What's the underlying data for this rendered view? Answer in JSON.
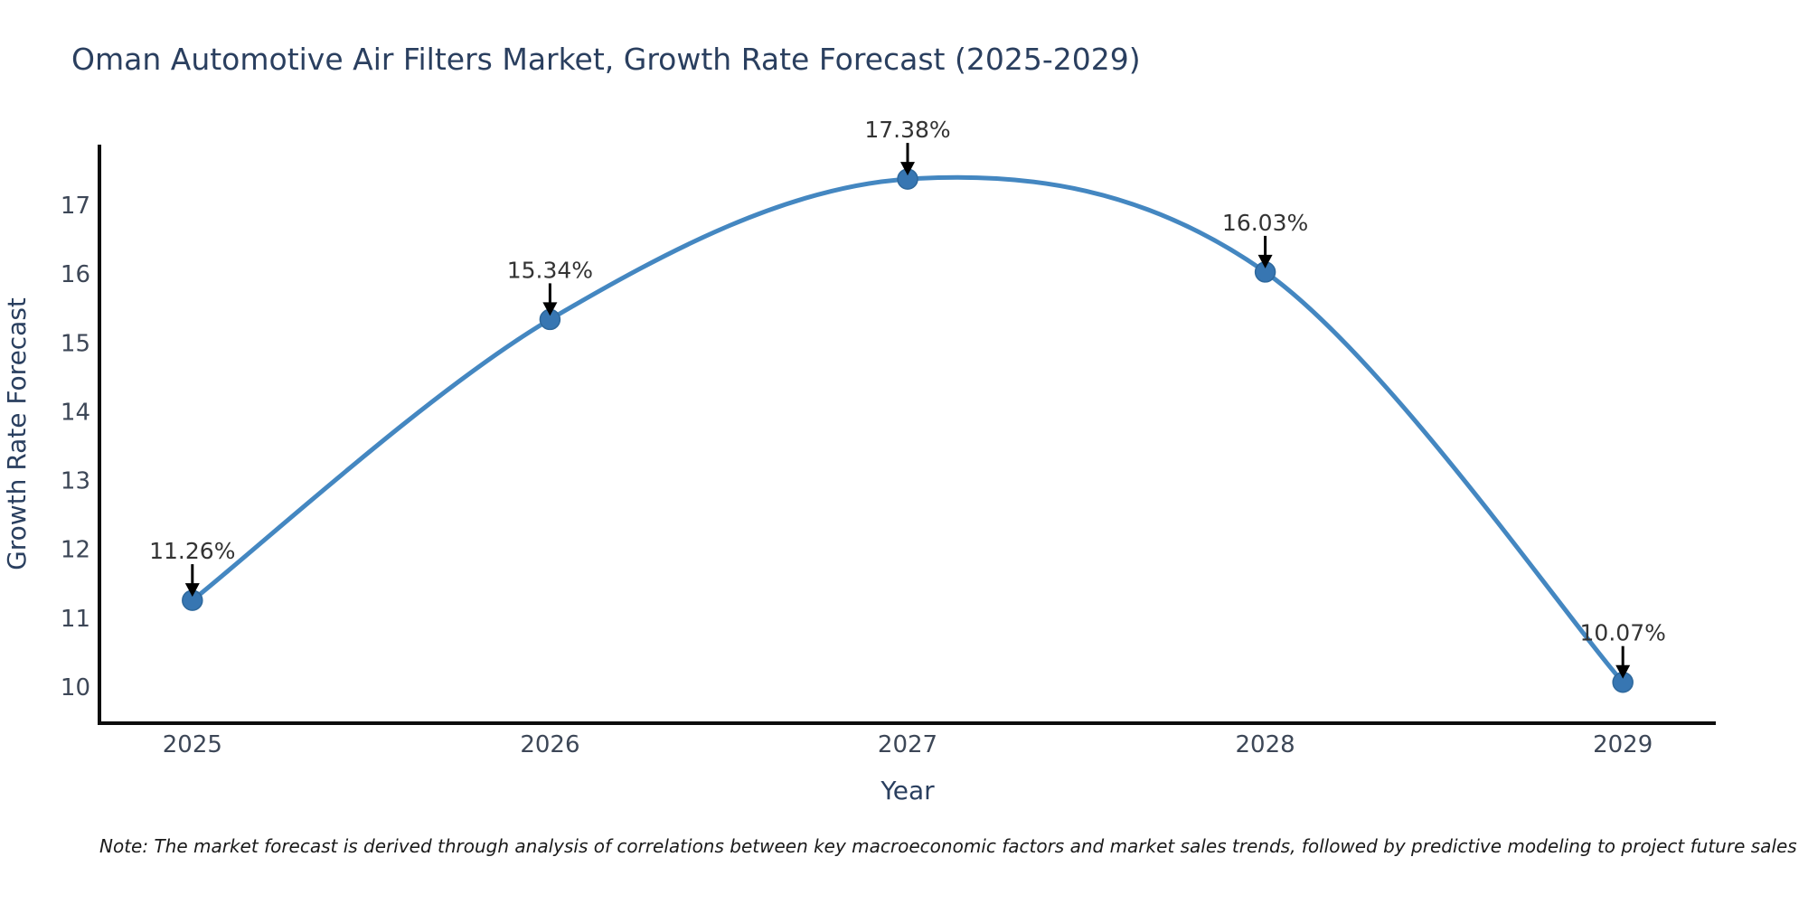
{
  "title": "Oman Automotive Air Filters Market, Growth Rate Forecast (2025-2029)",
  "note": "Note: The market forecast is derived through analysis of correlations between key macroeconomic factors and market sales trends, followed by predictive modeling to project future sales",
  "colors": {
    "line": "#4487c1",
    "marker_fill": "#3776b2",
    "marker_edge": "#2e689c",
    "axis_line": "#0d0d0d",
    "title_text": "#2a3f5f",
    "axis_label_text": "#2a3f5f",
    "tick_text": "#3d4757",
    "annotation_text": "#333333",
    "arrow": "#000000",
    "note_text": "#1a1a1a",
    "background": "#ffffff"
  },
  "chart_data": {
    "type": "line",
    "title": "Oman Automotive Air Filters Market, Growth Rate Forecast (2025-2029)",
    "xlabel": "Year",
    "ylabel": "Growth Rate Forecast",
    "x": [
      2025,
      2026,
      2027,
      2028,
      2029
    ],
    "series": [
      {
        "name": "Growth Rate Forecast",
        "values": [
          11.26,
          15.34,
          17.38,
          16.03,
          10.07
        ],
        "point_labels": [
          "11.26%",
          "15.34%",
          "17.38%",
          "16.03%",
          "10.07%"
        ]
      }
    ],
    "yticks": [
      10,
      11,
      12,
      13,
      14,
      15,
      16,
      17
    ],
    "xlim": [
      2024.74,
      2029.26
    ],
    "ylim": [
      9.475,
      17.88
    ],
    "grid": false,
    "legend": "none",
    "line_shape": "spline",
    "marker": "circle",
    "annotations_style": "value labels with black down arrows above each data point"
  }
}
